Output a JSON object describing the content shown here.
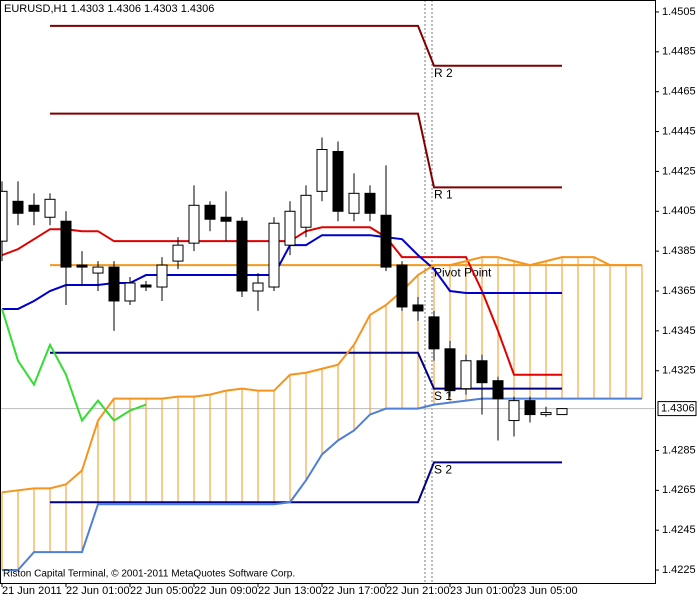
{
  "chart_data": {
    "type": "candlestick",
    "title": "EURUSD,H1  1.4303 1.4306 1.4303 1.4306",
    "footer": "Riston Capital Terminal, © 2001-2011 MetaQuotes Software Corp.",
    "categories": [
      "21 Jun 2011",
      null,
      null,
      null,
      "22 Jun 01:00",
      null,
      null,
      null,
      "22 Jun 05:00",
      null,
      null,
      null,
      "22 Jun 09:00",
      null,
      null,
      null,
      "22 Jun 13:00",
      null,
      null,
      null,
      "22 Jun 17:00",
      null,
      null,
      null,
      "22 Jun 21:00",
      null,
      null,
      null,
      "23 Jun 01:00",
      null,
      null,
      null,
      "23 Jun 05:00",
      null,
      null,
      null,
      null,
      null,
      null,
      null,
      null
    ],
    "open": [
      1.439,
      1.441,
      1.4408,
      1.4402,
      1.44,
      1.4378,
      1.4374,
      1.4377,
      1.436,
      1.4368,
      1.4367,
      1.438,
      1.4389,
      1.4408,
      1.4402,
      1.44,
      1.4365,
      1.4367,
      1.4388,
      1.4397,
      1.4415,
      1.4435,
      1.4404,
      1.4414,
      1.4403,
      1.4378,
      1.4358,
      1.4352,
      1.4336,
      1.4316,
      1.433,
      1.432,
      1.43,
      1.431,
      1.4303,
      1.4303,
      null,
      null,
      null,
      null,
      null
    ],
    "high": [
      1.442,
      1.442,
      1.4414,
      1.4414,
      1.4405,
      1.4385,
      1.438,
      1.438,
      1.4372,
      1.437,
      1.4382,
      1.4392,
      1.4418,
      1.441,
      1.4415,
      1.4402,
      1.4374,
      1.4402,
      1.441,
      1.4418,
      1.4442,
      1.444,
      1.4424,
      1.4418,
      1.4428,
      1.438,
      1.4362,
      1.4355,
      1.434,
      1.4333,
      1.4333,
      1.4322,
      1.4312,
      1.4312,
      1.4307,
      1.4306,
      null,
      null,
      null,
      null,
      null
    ],
    "low": [
      1.438,
      1.4398,
      1.4398,
      1.4398,
      1.4358,
      1.4368,
      1.4365,
      1.4345,
      1.4358,
      1.4365,
      1.436,
      1.4376,
      1.4385,
      1.4395,
      1.439,
      1.4362,
      1.4355,
      1.4365,
      1.4383,
      1.4392,
      1.441,
      1.44,
      1.44,
      1.44,
      1.4375,
      1.4355,
      1.435,
      1.433,
      1.4312,
      1.4313,
      1.4303,
      1.429,
      1.4292,
      1.4299,
      1.4302,
      1.4303,
      null,
      null,
      null,
      null,
      null
    ],
    "close": [
      1.4415,
      1.4404,
      1.4405,
      1.4411,
      1.4377,
      1.4377,
      1.4377,
      1.436,
      1.4369,
      1.4367,
      1.4378,
      1.4388,
      1.4408,
      1.4401,
      1.44,
      1.4365,
      1.4369,
      1.4399,
      1.4405,
      1.4413,
      1.4436,
      1.4405,
      1.4414,
      1.4404,
      1.4377,
      1.4357,
      1.4355,
      1.4336,
      1.4315,
      1.433,
      1.4319,
      1.4311,
      1.431,
      1.4303,
      1.4304,
      1.4306,
      null,
      null,
      null,
      null,
      null
    ],
    "ylim": [
      1.42185,
      1.4511
    ],
    "yticks": [
      1.4505,
      1.4485,
      1.4465,
      1.4445,
      1.4425,
      1.4405,
      1.4385,
      1.4365,
      1.4345,
      1.4325,
      1.4285,
      1.4265,
      1.4245,
      1.4225
    ],
    "current_price": 1.4306,
    "pivot_label_color": "#d03030",
    "series": [
      {
        "color": "#e00000",
        "values": [
          1.4383,
          1.4386,
          1.4391,
          1.4396,
          1.4396,
          1.4395,
          1.4395,
          1.439,
          1.439,
          1.439,
          1.439,
          1.439,
          1.439,
          1.439,
          1.439,
          1.439,
          1.439,
          1.439,
          1.439,
          1.4395,
          1.4397,
          1.4397,
          1.4397,
          1.4397,
          1.4392,
          1.4382,
          1.4382,
          1.4382,
          1.4382,
          1.4382,
          1.4365,
          1.4345,
          1.4323,
          1.4323,
          1.4323,
          1.4323,
          null,
          null,
          null,
          null,
          null
        ]
      },
      {
        "color": "#0000cc",
        "values": [
          1.4356,
          1.4356,
          1.436,
          1.4365,
          1.4368,
          1.4368,
          1.4368,
          1.4369,
          1.4369,
          1.4373,
          1.4373,
          1.4373,
          1.4373,
          1.4373,
          1.4373,
          1.4373,
          1.4373,
          1.4373,
          1.4388,
          1.4388,
          1.4393,
          1.4393,
          1.4393,
          1.4393,
          1.4392,
          1.4391,
          1.4383,
          1.4376,
          1.4365,
          1.4364,
          1.4364,
          1.4364,
          1.4364,
          1.4364,
          1.4364,
          1.4364,
          null,
          null,
          null,
          null,
          null
        ]
      },
      {
        "color": "#f7941d",
        "values": [
          1.4264,
          1.4265,
          1.4266,
          1.4266,
          1.4268,
          1.4275,
          1.43,
          1.4311,
          1.4311,
          1.4311,
          1.4311,
          1.4312,
          1.4312,
          1.4313,
          1.4315,
          1.4316,
          1.4315,
          1.4315,
          1.4323,
          1.4324,
          1.4326,
          1.4328,
          1.4338,
          1.4353,
          1.4358,
          1.4365,
          1.4373,
          1.4378,
          1.4378,
          1.438,
          1.4382,
          1.4382,
          1.438,
          1.4378,
          1.438,
          1.4382,
          1.4382,
          1.4382,
          1.4378,
          1.4378,
          1.4378
        ]
      },
      {
        "color": "#4f7fd6",
        "values": [
          1.4225,
          1.4225,
          1.4234,
          1.4234,
          1.4234,
          1.4234,
          1.4258,
          1.4258,
          1.4258,
          1.4258,
          1.4258,
          1.4258,
          1.4258,
          1.4258,
          1.4258,
          1.4258,
          1.4258,
          1.4258,
          1.4259,
          1.427,
          1.4283,
          1.429,
          1.4295,
          1.4303,
          1.4306,
          1.4306,
          1.4306,
          1.4308,
          1.4309,
          1.431,
          1.4311,
          1.4311,
          1.4311,
          1.4311,
          1.4311,
          1.4311,
          1.4311,
          1.4311,
          1.4311,
          1.4311,
          1.4311
        ]
      },
      {
        "color": "#33dd33",
        "values": [
          1.4356,
          1.433,
          1.4318,
          1.4338,
          1.4323,
          1.43,
          1.431,
          1.43,
          1.4305,
          1.4308,
          null,
          null,
          null,
          null,
          null,
          null,
          null,
          null,
          null,
          null,
          null,
          null,
          null,
          null,
          null,
          null,
          null,
          null,
          null,
          null,
          null,
          null,
          null,
          null,
          null,
          null,
          null,
          null,
          null,
          null,
          null
        ]
      },
      {
        "name": "R 2",
        "color": "#800000",
        "values": [
          null,
          null,
          null,
          1.4498,
          1.4498,
          1.4498,
          1.4498,
          1.4498,
          1.4498,
          1.4498,
          1.4498,
          1.4498,
          1.4498,
          1.4498,
          1.4498,
          1.4498,
          1.4498,
          1.4498,
          1.4498,
          1.4498,
          1.4498,
          1.4498,
          1.4498,
          1.4498,
          1.4498,
          1.4498,
          1.4498,
          1.4478,
          1.4478,
          1.4478,
          1.4478,
          1.4478,
          1.4478,
          1.4478,
          1.4478,
          1.4478,
          null,
          null,
          null,
          null,
          null
        ]
      },
      {
        "name": "R 1",
        "color": "#800000",
        "values": [
          null,
          null,
          null,
          1.4454,
          1.4454,
          1.4454,
          1.4454,
          1.4454,
          1.4454,
          1.4454,
          1.4454,
          1.4454,
          1.4454,
          1.4454,
          1.4454,
          1.4454,
          1.4454,
          1.4454,
          1.4454,
          1.4454,
          1.4454,
          1.4454,
          1.4454,
          1.4454,
          1.4454,
          1.4454,
          1.4454,
          1.4417,
          1.4417,
          1.4417,
          1.4417,
          1.4417,
          1.4417,
          1.4417,
          1.4417,
          1.4417,
          null,
          null,
          null,
          null,
          null
        ]
      },
      {
        "name": "Pivot Point",
        "color": "#f39a1e",
        "values": [
          null,
          null,
          null,
          1.4378,
          1.4378,
          1.4378,
          1.4378,
          1.4378,
          1.4378,
          1.4378,
          1.4378,
          1.4378,
          1.4378,
          1.4378,
          1.4378,
          1.4378,
          1.4378,
          1.4378,
          1.4378,
          1.4378,
          1.4378,
          1.4378,
          1.4378,
          1.4378,
          1.4378,
          1.4378,
          1.4378,
          1.4378,
          1.4378,
          1.4378,
          1.4378,
          1.4378,
          1.4378,
          1.4378,
          1.4378,
          1.4378,
          1.4378,
          1.4378,
          1.4378,
          1.4378,
          1.4378
        ]
      },
      {
        "name": "S 1",
        "color": "#000080",
        "values": [
          null,
          null,
          null,
          1.4334,
          1.4334,
          1.4334,
          1.4334,
          1.4334,
          1.4334,
          1.4334,
          1.4334,
          1.4334,
          1.4334,
          1.4334,
          1.4334,
          1.4334,
          1.4334,
          1.4334,
          1.4334,
          1.4334,
          1.4334,
          1.4334,
          1.4334,
          1.4334,
          1.4334,
          1.4334,
          1.4334,
          1.4316,
          1.4316,
          1.4316,
          1.4316,
          1.4316,
          1.4316,
          1.4316,
          1.4316,
          1.4316,
          null,
          null,
          null,
          null,
          null
        ]
      },
      {
        "name": "S 2",
        "color": "#000080",
        "values": [
          null,
          null,
          null,
          1.4259,
          1.4259,
          1.4259,
          1.4259,
          1.4259,
          1.4259,
          1.4259,
          1.4259,
          1.4259,
          1.4259,
          1.4259,
          1.4259,
          1.4259,
          1.4259,
          1.4259,
          1.4259,
          1.4259,
          1.4259,
          1.4259,
          1.4259,
          1.4259,
          1.4259,
          1.4259,
          1.4259,
          1.4279,
          1.4279,
          1.4279,
          1.4279,
          1.4279,
          1.4279,
          1.4279,
          1.4279,
          1.4279,
          null,
          null,
          null,
          null,
          null
        ]
      }
    ]
  }
}
